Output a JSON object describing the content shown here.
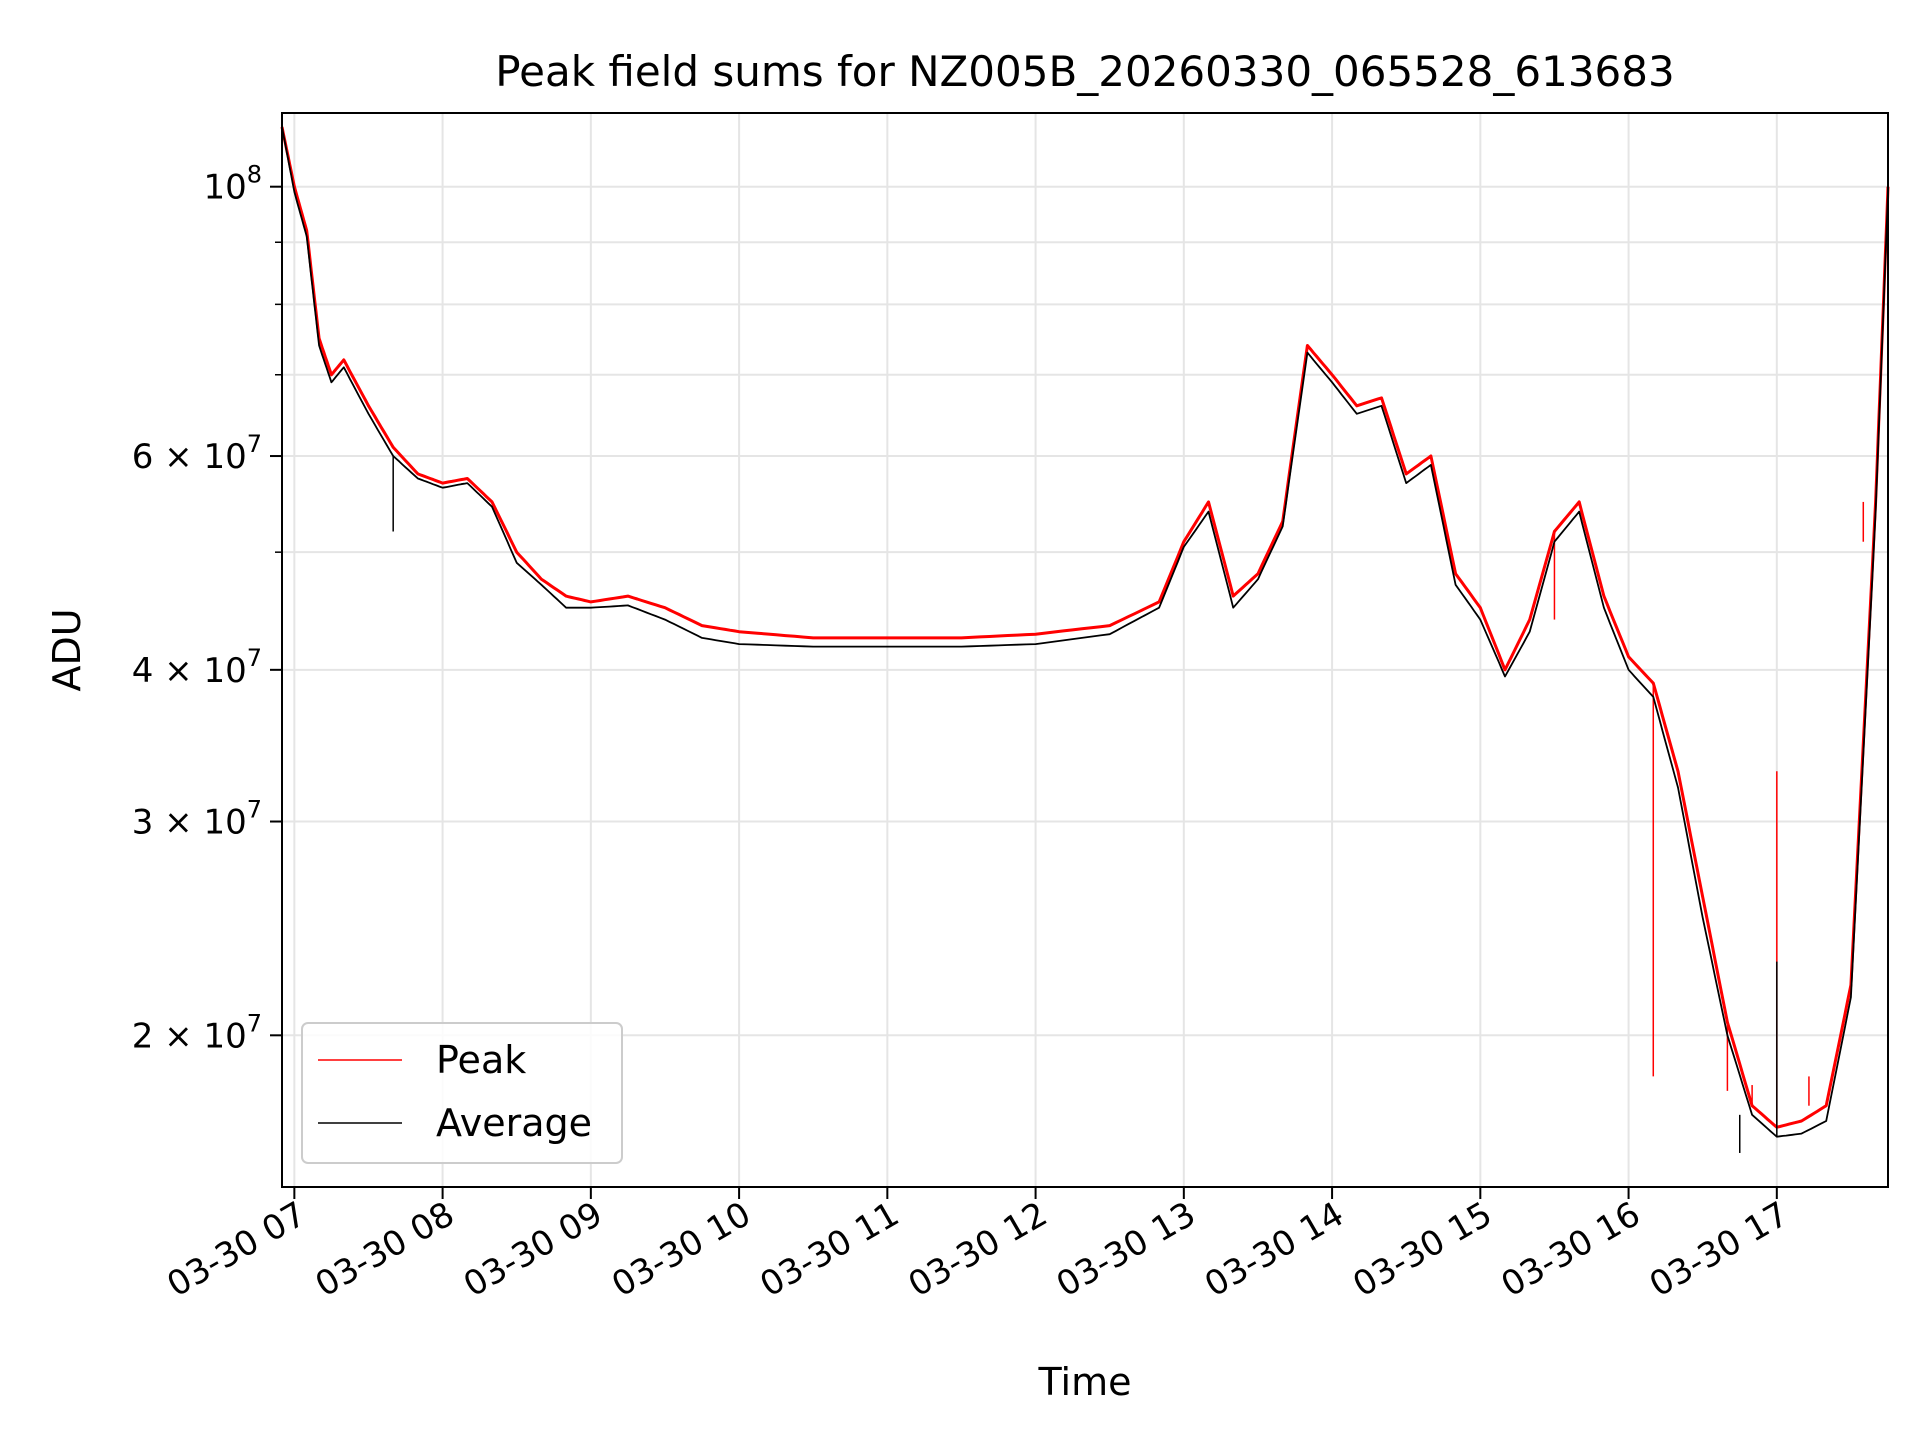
{
  "chart_data": {
    "type": "line",
    "title": "Peak field sums for NZ005B_20260330_065528_613683",
    "xlabel": "Time",
    "ylabel": "ADU",
    "yscale": "log",
    "ylim": [
      15000000,
      115000000
    ],
    "xlim": [
      "2026-03-30 06:55",
      "2026-03-30 17:45"
    ],
    "grid": true,
    "legend_position": "lower-left",
    "x_ticks": [
      "03-30 07",
      "03-30 08",
      "03-30 09",
      "03-30 10",
      "03-30 11",
      "03-30 12",
      "03-30 13",
      "03-30 14",
      "03-30 15",
      "03-30 16",
      "03-30 17"
    ],
    "y_ticks_major": [
      {
        "value": 100000000,
        "mantissa": "",
        "base": "10",
        "exp": "8"
      },
      {
        "value": 60000000,
        "mantissa": "6 × ",
        "base": "10",
        "exp": "7"
      },
      {
        "value": 40000000,
        "mantissa": "4 × ",
        "base": "10",
        "exp": "7"
      },
      {
        "value": 30000000,
        "mantissa": "3 × ",
        "base": "10",
        "exp": "7"
      },
      {
        "value": 20000000,
        "mantissa": "2 × ",
        "base": "10",
        "exp": "7"
      }
    ],
    "y_ticks_minor": [
      90000000,
      80000000,
      70000000,
      50000000
    ],
    "x": [
      "06:55",
      "07:00",
      "07:05",
      "07:10",
      "07:15",
      "07:20",
      "07:30",
      "07:40",
      "07:50",
      "08:00",
      "08:10",
      "08:20",
      "08:30",
      "08:40",
      "08:50",
      "09:00",
      "09:15",
      "09:30",
      "09:45",
      "10:00",
      "10:30",
      "11:00",
      "11:30",
      "12:00",
      "12:30",
      "12:50",
      "13:00",
      "13:10",
      "13:20",
      "13:30",
      "13:40",
      "13:50",
      "14:00",
      "14:10",
      "14:20",
      "14:30",
      "14:40",
      "14:50",
      "15:00",
      "15:10",
      "15:20",
      "15:30",
      "15:40",
      "15:50",
      "16:00",
      "16:10",
      "16:20",
      "16:30",
      "16:40",
      "16:50",
      "17:00",
      "17:10",
      "17:20",
      "17:30",
      "17:40",
      "17:45"
    ],
    "series": [
      {
        "name": "Peak",
        "color": "#ff0000",
        "values": [
          112000000,
          100000000,
          92000000,
          75000000,
          70000000,
          72000000,
          66000000,
          61000000,
          58000000,
          57000000,
          57500000,
          55000000,
          50000000,
          47500000,
          46000000,
          45500000,
          46000000,
          45000000,
          43500000,
          43000000,
          42500000,
          42500000,
          42500000,
          42800000,
          43500000,
          45500000,
          51000000,
          55000000,
          46000000,
          48000000,
          53000000,
          74000000,
          70000000,
          66000000,
          67000000,
          58000000,
          60000000,
          48000000,
          45000000,
          40000000,
          44000000,
          52000000,
          55000000,
          46000000,
          41000000,
          39000000,
          33000000,
          26000000,
          20500000,
          17500000,
          16800000,
          17000000,
          17500000,
          22000000,
          55000000,
          100000000
        ],
        "spikes": [
          {
            "x": "15:30",
            "value": 44000000
          },
          {
            "x": "16:10",
            "value": 18500000
          },
          {
            "x": "16:40",
            "value": 18000000
          },
          {
            "x": "16:50",
            "value": 18200000
          },
          {
            "x": "17:00",
            "value": 33000000
          },
          {
            "x": "17:13",
            "value": 18500000
          },
          {
            "x": "17:35",
            "value": 51000000
          }
        ]
      },
      {
        "name": "Average",
        "color": "#000000",
        "values": [
          112000000,
          99000000,
          91000000,
          74000000,
          69000000,
          71000000,
          65000000,
          60000000,
          57500000,
          56500000,
          57000000,
          54500000,
          49000000,
          47000000,
          45000000,
          45000000,
          45200000,
          44000000,
          42500000,
          42000000,
          41800000,
          41800000,
          41800000,
          42000000,
          42800000,
          45000000,
          50500000,
          54000000,
          45000000,
          47500000,
          52500000,
          73000000,
          69000000,
          65000000,
          66000000,
          57000000,
          59000000,
          47000000,
          44000000,
          39500000,
          43000000,
          51000000,
          54000000,
          45000000,
          40000000,
          38000000,
          32000000,
          25000000,
          20000000,
          17200000,
          16500000,
          16600000,
          17000000,
          21500000,
          54000000,
          99000000
        ],
        "spikes": [
          {
            "x": "07:40",
            "value": 52000000
          },
          {
            "x": "16:45",
            "value": 16000000
          },
          {
            "x": "17:00",
            "value": 23000000
          }
        ]
      }
    ]
  }
}
